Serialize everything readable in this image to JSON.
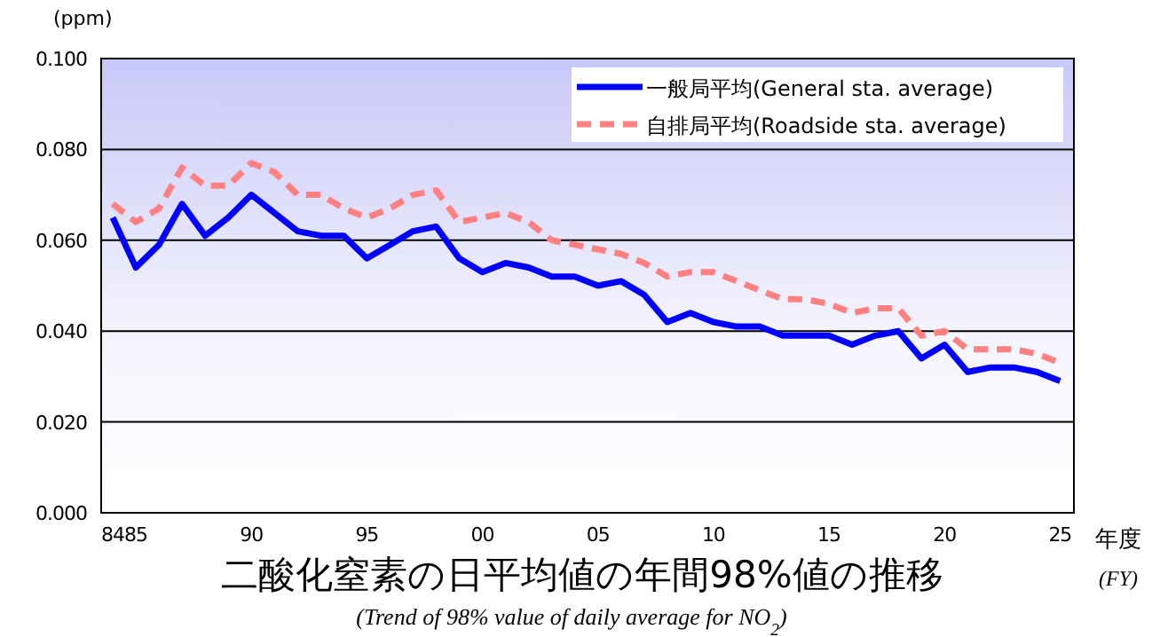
{
  "chart_data": {
    "type": "line",
    "title": "二酸化窒素の日平均値の年間98%値の推移",
    "subtitle": "(Trend of 98% value of daily average for NO$_{2}$)",
    "ylabel": "(ppm)",
    "xlabel": "年度 (FY)",
    "x": [
      1984,
      1985,
      1986,
      1987,
      1988,
      1989,
      1990,
      1991,
      1992,
      1993,
      1994,
      1995,
      1996,
      1997,
      1998,
      1999,
      2000,
      2001,
      2002,
      2003,
      2004,
      2005,
      2006,
      2007,
      2008,
      2009,
      2010,
      2011,
      2012,
      2013,
      2014,
      2015,
      2016,
      2017,
      2018,
      2019,
      2020,
      2021,
      2022,
      2023,
      2024,
      2025
    ],
    "series": [
      {
        "name": "一般局平均(General sta. average)",
        "color": "#0000ff",
        "line_style": "solid",
        "values": [
          0.065,
          0.054,
          0.059,
          0.068,
          0.061,
          0.065,
          0.07,
          0.066,
          0.062,
          0.061,
          0.061,
          0.056,
          0.059,
          0.062,
          0.063,
          0.056,
          0.053,
          0.055,
          0.054,
          0.052,
          0.052,
          0.05,
          0.051,
          0.048,
          0.042,
          0.044,
          0.042,
          0.041,
          0.041,
          0.039,
          0.039,
          0.039,
          0.037,
          0.039,
          0.04,
          0.034,
          0.037,
          0.031,
          0.032,
          0.032,
          0.031,
          0.029
        ]
      },
      {
        "name": "自排局平均(Roadside sta. average)",
        "color": "#ff8080",
        "line_style": "dashed",
        "values": [
          0.068,
          0.064,
          0.067,
          0.076,
          0.072,
          0.072,
          0.077,
          0.075,
          0.07,
          0.07,
          0.067,
          0.065,
          0.067,
          0.07,
          0.071,
          0.064,
          0.065,
          0.066,
          0.064,
          0.06,
          0.059,
          0.058,
          0.057,
          0.055,
          0.052,
          0.053,
          0.053,
          0.051,
          0.049,
          0.047,
          0.047,
          0.046,
          0.044,
          0.045,
          0.045,
          0.039,
          0.04,
          0.036,
          0.036,
          0.036,
          0.035,
          0.033
        ]
      }
    ],
    "xlim": [
      1983.5,
      2025.6
    ],
    "xticks": [
      {
        "value": 1984,
        "label": "84"
      },
      {
        "value": 1985,
        "label": "85"
      },
      {
        "value": 1990,
        "label": "90"
      },
      {
        "value": 1995,
        "label": "95"
      },
      {
        "value": 2000,
        "label": "00"
      },
      {
        "value": 2005,
        "label": "05"
      },
      {
        "value": 2010,
        "label": "10"
      },
      {
        "value": 2015,
        "label": "15"
      },
      {
        "value": 2020,
        "label": "20"
      },
      {
        "value": 2025,
        "label": "25"
      }
    ],
    "ylim": [
      0,
      0.1
    ],
    "yticks": [
      {
        "value": 0,
        "label": "0.000"
      },
      {
        "value": 0.02,
        "label": "0.020"
      },
      {
        "value": 0.04,
        "label": "0.040"
      },
      {
        "value": 0.06,
        "label": "0.060"
      },
      {
        "value": 0.08,
        "label": "0.080"
      },
      {
        "value": 0.1,
        "label": "0.100"
      }
    ],
    "grid": "y",
    "legend": "top right",
    "marker": "none"
  }
}
